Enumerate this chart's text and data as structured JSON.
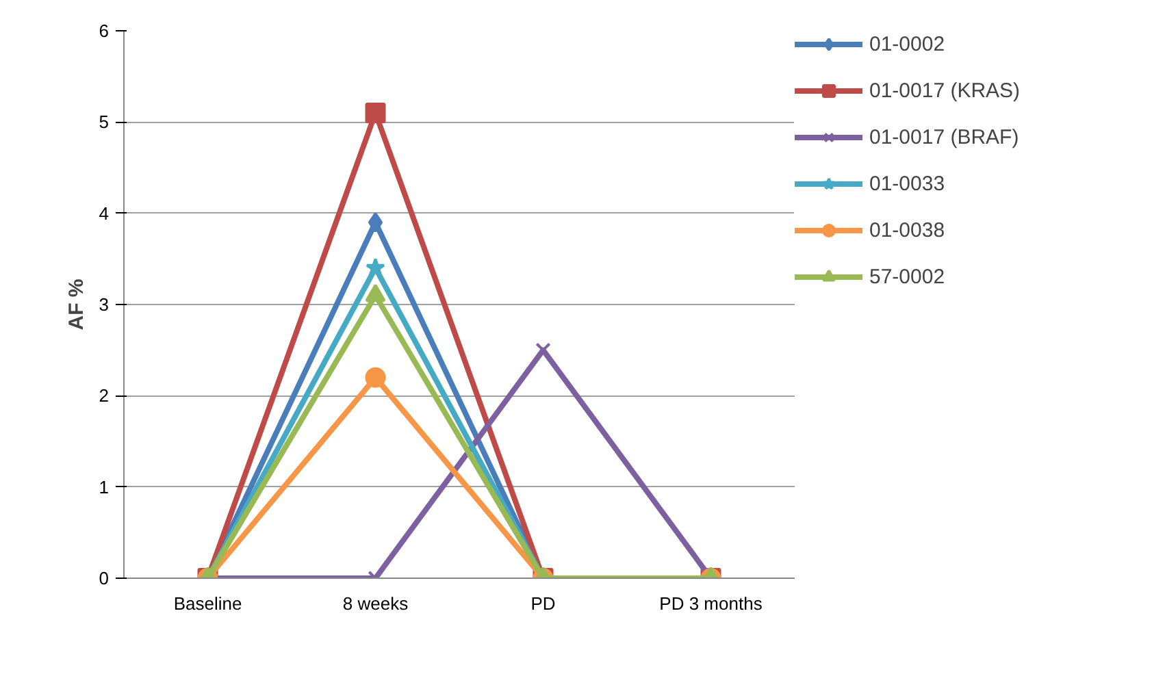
{
  "chart_data": {
    "type": "line",
    "ylabel": "AF %",
    "categories": [
      "Baseline",
      "8 weeks",
      "PD",
      "PD 3 months"
    ],
    "ylim": [
      0,
      6
    ],
    "yticks": [
      0,
      1,
      2,
      3,
      4,
      5,
      6
    ],
    "grid": "y",
    "legend": "right",
    "series": [
      {
        "name": "01-0002",
        "color": "#4a7ebb",
        "marker": "diamond",
        "values": [
          0,
          3.9,
          0,
          0
        ]
      },
      {
        "name": "01-0017 (KRAS)",
        "color": "#be4b48",
        "marker": "square",
        "values": [
          0,
          5.1,
          0,
          0
        ]
      },
      {
        "name": "01-0017 (BRAF)",
        "color": "#7d60a0",
        "marker": "cross",
        "values": [
          0,
          0,
          2.5,
          0
        ]
      },
      {
        "name": "01-0033",
        "color": "#46aac5",
        "marker": "star",
        "values": [
          0,
          3.4,
          0,
          0
        ]
      },
      {
        "name": "01-0038",
        "color": "#f79646",
        "marker": "circle",
        "values": [
          0,
          2.2,
          0,
          0
        ]
      },
      {
        "name": "57-0002",
        "color": "#98b954",
        "marker": "triangle",
        "values": [
          0,
          3.1,
          0,
          0
        ]
      }
    ]
  }
}
